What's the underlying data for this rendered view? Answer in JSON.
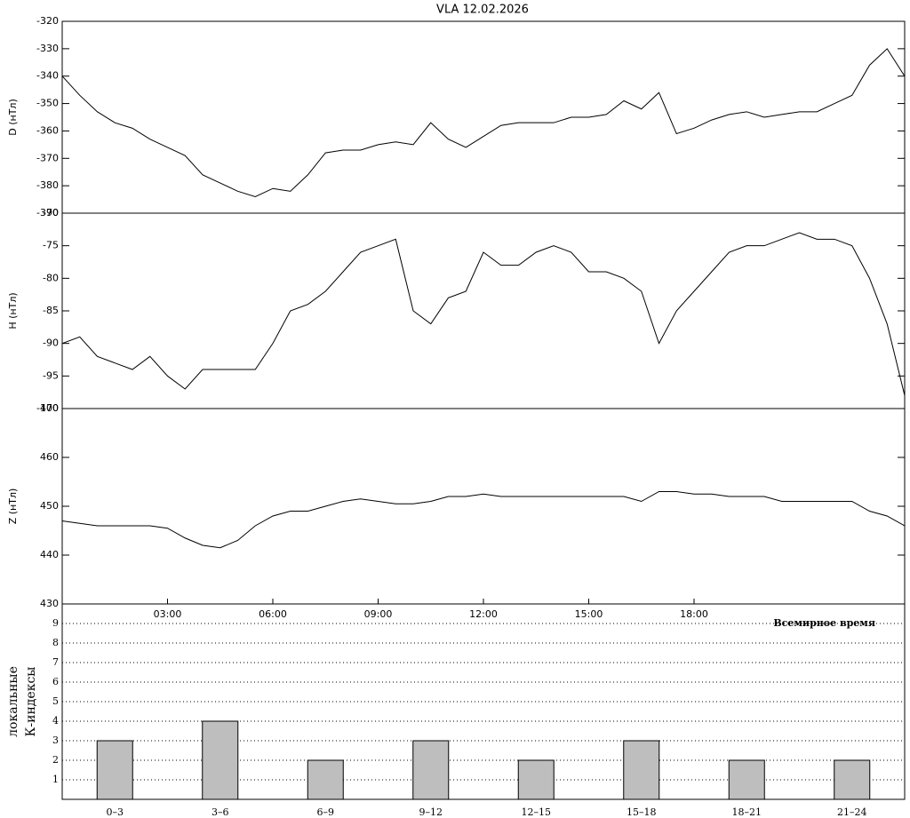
{
  "chart_data": [
    {
      "type": "line",
      "title": "VLA   12.02.2026",
      "ylabel": "D (нТл)",
      "color": "#000000",
      "x": [
        0,
        0.5,
        1,
        1.5,
        2,
        2.5,
        3,
        3.5,
        4,
        4.5,
        5,
        5.5,
        6,
        6.5,
        7,
        7.5,
        8,
        8.5,
        9,
        9.5,
        10,
        10.5,
        11,
        11.5,
        12,
        12.5,
        13,
        13.5,
        14,
        14.5,
        15,
        15.5,
        16,
        16.5,
        17,
        17.5,
        18,
        18.5,
        19,
        19.5,
        20,
        20.5,
        21,
        21.5,
        22,
        22.5,
        23,
        23.5,
        24
      ],
      "values": [
        -340,
        -347,
        -353,
        -357,
        -359,
        -363,
        -366,
        -369,
        -376,
        -379,
        -382,
        -384,
        -381,
        -382,
        -376,
        -368,
        -367,
        -367,
        -365,
        -364,
        -365,
        -357,
        -363,
        -366,
        -362,
        -358,
        -357,
        -357,
        -357,
        -355,
        -355,
        -354,
        -349,
        -352,
        -346,
        -361,
        -359,
        -356,
        -354,
        -353,
        -355,
        -354,
        -353,
        -353,
        -350,
        -347,
        -336,
        -330,
        -340
      ],
      "xlim": [
        0,
        24
      ],
      "ylim": [
        -390,
        -320
      ],
      "yticks": [
        -390,
        -380,
        -370,
        -360,
        -350,
        -340,
        -330,
        -320
      ]
    },
    {
      "type": "line",
      "ylabel": "H (нТл)",
      "color": "#000000",
      "x": [
        0,
        0.5,
        1,
        1.5,
        2,
        2.5,
        3,
        3.5,
        4,
        4.5,
        5,
        5.5,
        6,
        6.5,
        7,
        7.5,
        8,
        8.5,
        9,
        9.5,
        10,
        10.5,
        11,
        11.5,
        12,
        12.5,
        13,
        13.5,
        14,
        14.5,
        15,
        15.5,
        16,
        16.5,
        17,
        17.5,
        18,
        18.5,
        19,
        19.5,
        20,
        20.5,
        21,
        21.5,
        22,
        22.5,
        23,
        23.5,
        24
      ],
      "values": [
        -90,
        -89,
        -92,
        -93,
        -94,
        -92,
        -95,
        -97,
        -94,
        -94,
        -94,
        -94,
        -90,
        -85,
        -84,
        -82,
        -79,
        -76,
        -75,
        -74,
        -85,
        -87,
        -83,
        -82,
        -76,
        -78,
        -78,
        -76,
        -75,
        -76,
        -79,
        -79,
        -80,
        -82,
        -90,
        -85,
        -82,
        -79,
        -76,
        -75,
        -75,
        -74,
        -73,
        -74,
        -74,
        -75,
        -80,
        -87,
        -98
      ],
      "xlim": [
        0,
        24
      ],
      "ylim": [
        -100,
        -70
      ],
      "yticks": [
        -100,
        -95,
        -90,
        -85,
        -80,
        -75,
        -70
      ]
    },
    {
      "type": "line",
      "ylabel": "Z (нТл)",
      "color": "#000000",
      "x": [
        0,
        0.5,
        1,
        1.5,
        2,
        2.5,
        3,
        3.5,
        4,
        4.5,
        5,
        5.5,
        6,
        6.5,
        7,
        7.5,
        8,
        8.5,
        9,
        9.5,
        10,
        10.5,
        11,
        11.5,
        12,
        12.5,
        13,
        13.5,
        14,
        14.5,
        15,
        15.5,
        16,
        16.5,
        17,
        17.5,
        18,
        18.5,
        19,
        19.5,
        20,
        20.5,
        21,
        21.5,
        22,
        22.5,
        23,
        23.5,
        24
      ],
      "values": [
        447,
        446.5,
        446,
        446,
        446,
        446,
        445.5,
        443.5,
        442,
        441.5,
        443,
        446,
        448,
        449,
        449,
        450,
        451,
        451.5,
        451,
        450.5,
        450.5,
        451,
        452,
        452,
        452.5,
        452,
        452,
        452,
        452,
        452,
        452,
        452,
        452,
        451,
        453,
        453,
        452.5,
        452.5,
        452,
        452,
        452,
        451,
        451,
        451,
        451,
        451,
        449,
        448,
        446
      ],
      "xlim": [
        0,
        24
      ],
      "ylim": [
        430,
        470
      ],
      "yticks": [
        430,
        440,
        450,
        460,
        470
      ],
      "xticks": [
        {
          "value": 3,
          "label": "03:00"
        },
        {
          "value": 6,
          "label": "06:00"
        },
        {
          "value": 9,
          "label": "09:00"
        },
        {
          "value": 12,
          "label": "12:00"
        },
        {
          "value": 15,
          "label": "15:00"
        },
        {
          "value": 18,
          "label": "18:00"
        }
      ]
    },
    {
      "type": "bar",
      "ylabel": [
        "локальные",
        "К-индексы"
      ],
      "xlabel": "Всемирное время",
      "color": "#bebebe",
      "categories": [
        "0–3",
        "3–6",
        "6–9",
        "9–12",
        "12–15",
        "15–18",
        "18–21",
        "21–24"
      ],
      "values": [
        3,
        4,
        2,
        3,
        2,
        3,
        2,
        2
      ],
      "ylim": [
        0,
        10
      ],
      "yticks": [
        1,
        2,
        3,
        4,
        5,
        6,
        7,
        8,
        9
      ],
      "grid": true
    }
  ]
}
